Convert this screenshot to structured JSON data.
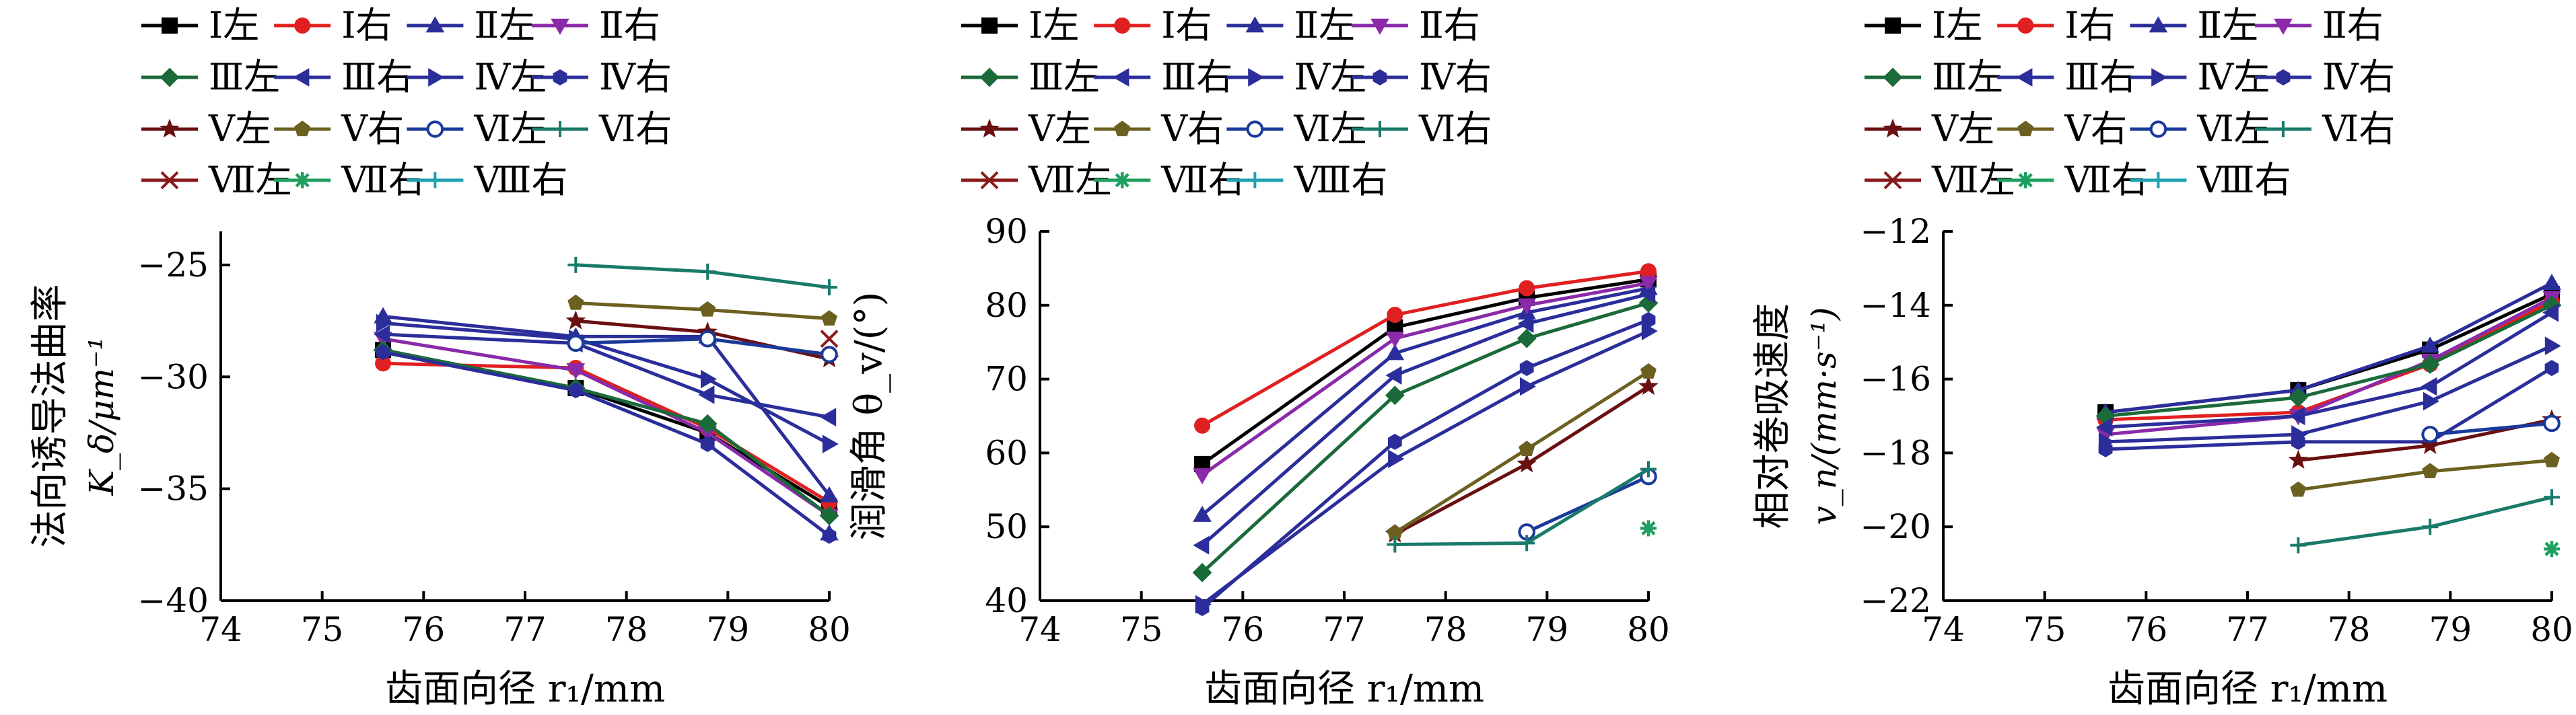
{
  "series_styles": [
    {
      "key": "I_L",
      "label": "Ⅰ左",
      "color": "#000000",
      "marker": "square"
    },
    {
      "key": "I_R",
      "label": "Ⅰ右",
      "color": "#e02020",
      "marker": "circle"
    },
    {
      "key": "II_L",
      "label": "Ⅱ左",
      "color": "#2b2e9a",
      "marker": "tri-up"
    },
    {
      "key": "II_R",
      "label": "Ⅱ右",
      "color": "#8a2aa8",
      "marker": "tri-down"
    },
    {
      "key": "III_L",
      "label": "Ⅲ左",
      "color": "#1a6a3a",
      "marker": "diamond"
    },
    {
      "key": "III_R",
      "label": "Ⅲ右",
      "color": "#2b2e9a",
      "marker": "tri-left"
    },
    {
      "key": "IV_L",
      "label": "Ⅳ左",
      "color": "#2b2e9a",
      "marker": "tri-right"
    },
    {
      "key": "IV_R",
      "label": "Ⅳ右",
      "color": "#2b2e9a",
      "marker": "hexagon"
    },
    {
      "key": "V_L",
      "label": "Ⅴ左",
      "color": "#6a1010",
      "marker": "star"
    },
    {
      "key": "V_R",
      "label": "Ⅴ右",
      "color": "#6b6020",
      "marker": "pentagon"
    },
    {
      "key": "VI_L",
      "label": "Ⅵ左",
      "color": "#1a3a9a",
      "marker": "circle-open"
    },
    {
      "key": "VI_R",
      "label": "Ⅵ右",
      "color": "#1a7a6a",
      "marker": "plus"
    },
    {
      "key": "VII_L",
      "label": "Ⅶ左",
      "color": "#8a1a1a",
      "marker": "x"
    },
    {
      "key": "VII_R",
      "label": "Ⅶ右",
      "color": "#20a060",
      "marker": "asterisk"
    },
    {
      "key": "VIII_R",
      "label": "Ⅷ右",
      "color": "#20a0b0",
      "marker": "plus"
    }
  ],
  "chart_data": [
    {
      "type": "line",
      "xlabel": "齿面向径 r₁/mm",
      "ylabel_line1": "法向诱导法曲率",
      "ylabel_line2": "K_δ/μm⁻¹",
      "xlim": [
        74,
        80
      ],
      "ylim": [
        -40,
        -23.5
      ],
      "xticks": [
        74,
        75,
        76,
        77,
        78,
        79,
        80
      ],
      "yticks": [
        -40,
        -35,
        -30,
        -25
      ],
      "series": [
        {
          "key": "I_L",
          "x": [
            75.6,
            77.5,
            78.8,
            80.0
          ],
          "y": [
            -28.8,
            -30.5,
            -32.5,
            -35.8
          ]
        },
        {
          "key": "I_R",
          "x": [
            75.6,
            77.5,
            78.8,
            80.0
          ],
          "y": [
            -29.4,
            -29.6,
            -32.3,
            -35.6
          ]
        },
        {
          "key": "II_L",
          "x": [
            75.6,
            77.5,
            78.8,
            80.0
          ],
          "y": [
            -27.3,
            -28.2,
            -28.2,
            -35.3
          ]
        },
        {
          "key": "II_R",
          "x": [
            75.6,
            77.5,
            78.8,
            80.0
          ],
          "y": [
            -28.3,
            -29.7,
            -32.5,
            -36.2
          ]
        },
        {
          "key": "III_L",
          "x": [
            75.6,
            77.5,
            78.8,
            80.0
          ],
          "y": [
            -28.8,
            -30.5,
            -32.1,
            -36.2
          ]
        },
        {
          "key": "III_R",
          "x": [
            75.6,
            77.5,
            78.8,
            80.0
          ],
          "y": [
            -28.1,
            -28.5,
            -30.8,
            -31.8
          ]
        },
        {
          "key": "IV_L",
          "x": [
            75.6,
            77.5,
            78.8,
            80.0
          ],
          "y": [
            -27.6,
            -28.3,
            -30.1,
            -33.0
          ]
        },
        {
          "key": "IV_R",
          "x": [
            75.6,
            77.5,
            78.8,
            80.0
          ],
          "y": [
            -28.9,
            -30.6,
            -33.0,
            -37.1
          ]
        },
        {
          "key": "V_L",
          "x": [
            77.5,
            78.8,
            80.0
          ],
          "y": [
            -27.5,
            -28.0,
            -29.2
          ]
        },
        {
          "key": "V_R",
          "x": [
            77.5,
            78.8,
            80.0
          ],
          "y": [
            -26.7,
            -27.0,
            -27.4
          ]
        },
        {
          "key": "VI_L",
          "x": [
            77.5,
            78.8,
            80.0
          ],
          "y": [
            -28.5,
            -28.3,
            -29.0
          ]
        },
        {
          "key": "VI_R",
          "x": [
            77.5,
            78.8,
            80.0
          ],
          "y": [
            -25.0,
            -25.3,
            -26.0
          ]
        },
        {
          "key": "VII_L",
          "x": [
            80.0
          ],
          "y": [
            -28.3
          ]
        },
        {
          "key": "II_L",
          "x": [
            80.0
          ],
          "y": [
            -37.0
          ],
          "extra": true
        }
      ]
    },
    {
      "type": "line",
      "xlabel": "齿面向径 r₁/mm",
      "ylabel_line1": "润滑角 θ_v/(°)",
      "ylabel_line2": "",
      "xlim": [
        74,
        80
      ],
      "ylim": [
        40,
        90
      ],
      "xticks": [
        74,
        75,
        76,
        77,
        78,
        79,
        80
      ],
      "yticks": [
        40,
        50,
        60,
        70,
        80,
        90
      ],
      "series": [
        {
          "key": "I_L",
          "x": [
            75.6,
            77.5,
            78.8,
            80.0
          ],
          "y": [
            58.5,
            77.0,
            81.0,
            83.5
          ]
        },
        {
          "key": "I_R",
          "x": [
            75.6,
            77.5,
            78.8,
            80.0
          ],
          "y": [
            63.7,
            78.7,
            82.3,
            84.6
          ]
        },
        {
          "key": "II_L",
          "x": [
            75.6,
            77.5,
            78.8,
            80.0
          ],
          "y": [
            51.6,
            73.5,
            79.0,
            82.3
          ]
        },
        {
          "key": "II_R",
          "x": [
            75.6,
            77.5,
            78.8,
            80.0
          ],
          "y": [
            57.0,
            75.5,
            80.0,
            83.0
          ]
        },
        {
          "key": "III_L",
          "x": [
            75.6,
            77.5,
            78.8,
            80.0
          ],
          "y": [
            43.8,
            67.8,
            75.5,
            80.3
          ]
        },
        {
          "key": "III_R",
          "x": [
            75.6,
            77.5,
            78.8,
            80.0
          ],
          "y": [
            47.5,
            70.5,
            77.5,
            81.5
          ]
        },
        {
          "key": "IV_L",
          "x": [
            75.6,
            77.5,
            78.8,
            80.0
          ],
          "y": [
            39.5,
            59.2,
            69.0,
            76.5
          ]
        },
        {
          "key": "IV_R",
          "x": [
            75.6,
            77.5,
            78.8,
            80.0
          ],
          "y": [
            39.0,
            61.5,
            71.5,
            78.0
          ]
        },
        {
          "key": "V_L",
          "x": [
            77.5,
            78.8,
            80.0
          ],
          "y": [
            49.0,
            58.5,
            69.0
          ]
        },
        {
          "key": "V_R",
          "x": [
            77.5,
            78.8,
            80.0
          ],
          "y": [
            49.2,
            60.5,
            71.0
          ]
        },
        {
          "key": "VI_L",
          "x": [
            78.8,
            80.0
          ],
          "y": [
            49.3,
            56.8
          ]
        },
        {
          "key": "VI_R",
          "x": [
            77.5,
            78.8,
            80.0
          ],
          "y": [
            47.6,
            47.8,
            57.8
          ]
        },
        {
          "key": "VII_R",
          "x": [
            80.0
          ],
          "y": [
            49.8
          ]
        }
      ]
    },
    {
      "type": "line",
      "xlabel": "齿面向径 r₁/mm",
      "ylabel_line1": "相对卷吸速度",
      "ylabel_line2": "v_n/(mm·s⁻¹)",
      "xlim": [
        74,
        80
      ],
      "ylim": [
        -22,
        -12
      ],
      "xticks": [
        74,
        75,
        76,
        77,
        78,
        79,
        80
      ],
      "yticks": [
        -22,
        -20,
        -18,
        -16,
        -14,
        -12
      ],
      "series": [
        {
          "key": "I_L",
          "x": [
            75.6,
            77.5,
            78.8,
            80.0
          ],
          "y": [
            -16.9,
            -16.3,
            -15.2,
            -13.7
          ]
        },
        {
          "key": "I_R",
          "x": [
            75.6,
            77.5,
            78.8,
            80.0
          ],
          "y": [
            -17.1,
            -16.9,
            -15.6,
            -13.9
          ]
        },
        {
          "key": "II_L",
          "x": [
            75.6,
            77.5,
            78.8,
            80.0
          ],
          "y": [
            -16.9,
            -16.3,
            -15.1,
            -13.4
          ]
        },
        {
          "key": "II_R",
          "x": [
            75.6,
            77.5,
            78.8,
            80.0
          ],
          "y": [
            -17.5,
            -17.0,
            -15.5,
            -13.8
          ]
        },
        {
          "key": "III_L",
          "x": [
            75.6,
            77.5,
            78.8,
            80.0
          ],
          "y": [
            -17.0,
            -16.5,
            -15.6,
            -14.0
          ]
        },
        {
          "key": "III_R",
          "x": [
            75.6,
            77.5,
            78.8,
            80.0
          ],
          "y": [
            -17.3,
            -17.0,
            -16.2,
            -14.2
          ]
        },
        {
          "key": "IV_L",
          "x": [
            75.6,
            77.5,
            78.8,
            80.0
          ],
          "y": [
            -17.7,
            -17.5,
            -16.6,
            -15.1
          ]
        },
        {
          "key": "IV_R",
          "x": [
            75.6,
            77.5,
            78.8,
            80.0
          ],
          "y": [
            -17.9,
            -17.7,
            -17.7,
            -15.7
          ]
        },
        {
          "key": "V_L",
          "x": [
            77.5,
            78.8,
            80.0
          ],
          "y": [
            -18.2,
            -17.8,
            -17.1
          ]
        },
        {
          "key": "V_R",
          "x": [
            77.5,
            78.8,
            80.0
          ],
          "y": [
            -19.0,
            -18.5,
            -18.2
          ]
        },
        {
          "key": "VI_L",
          "x": [
            78.8,
            80.0
          ],
          "y": [
            -17.5,
            -17.2
          ]
        },
        {
          "key": "VI_R",
          "x": [
            77.5,
            78.8,
            80.0
          ],
          "y": [
            -20.5,
            -20.0,
            -19.2
          ]
        },
        {
          "key": "VII_R",
          "x": [
            80.0
          ],
          "y": [
            -20.6
          ]
        }
      ]
    }
  ]
}
